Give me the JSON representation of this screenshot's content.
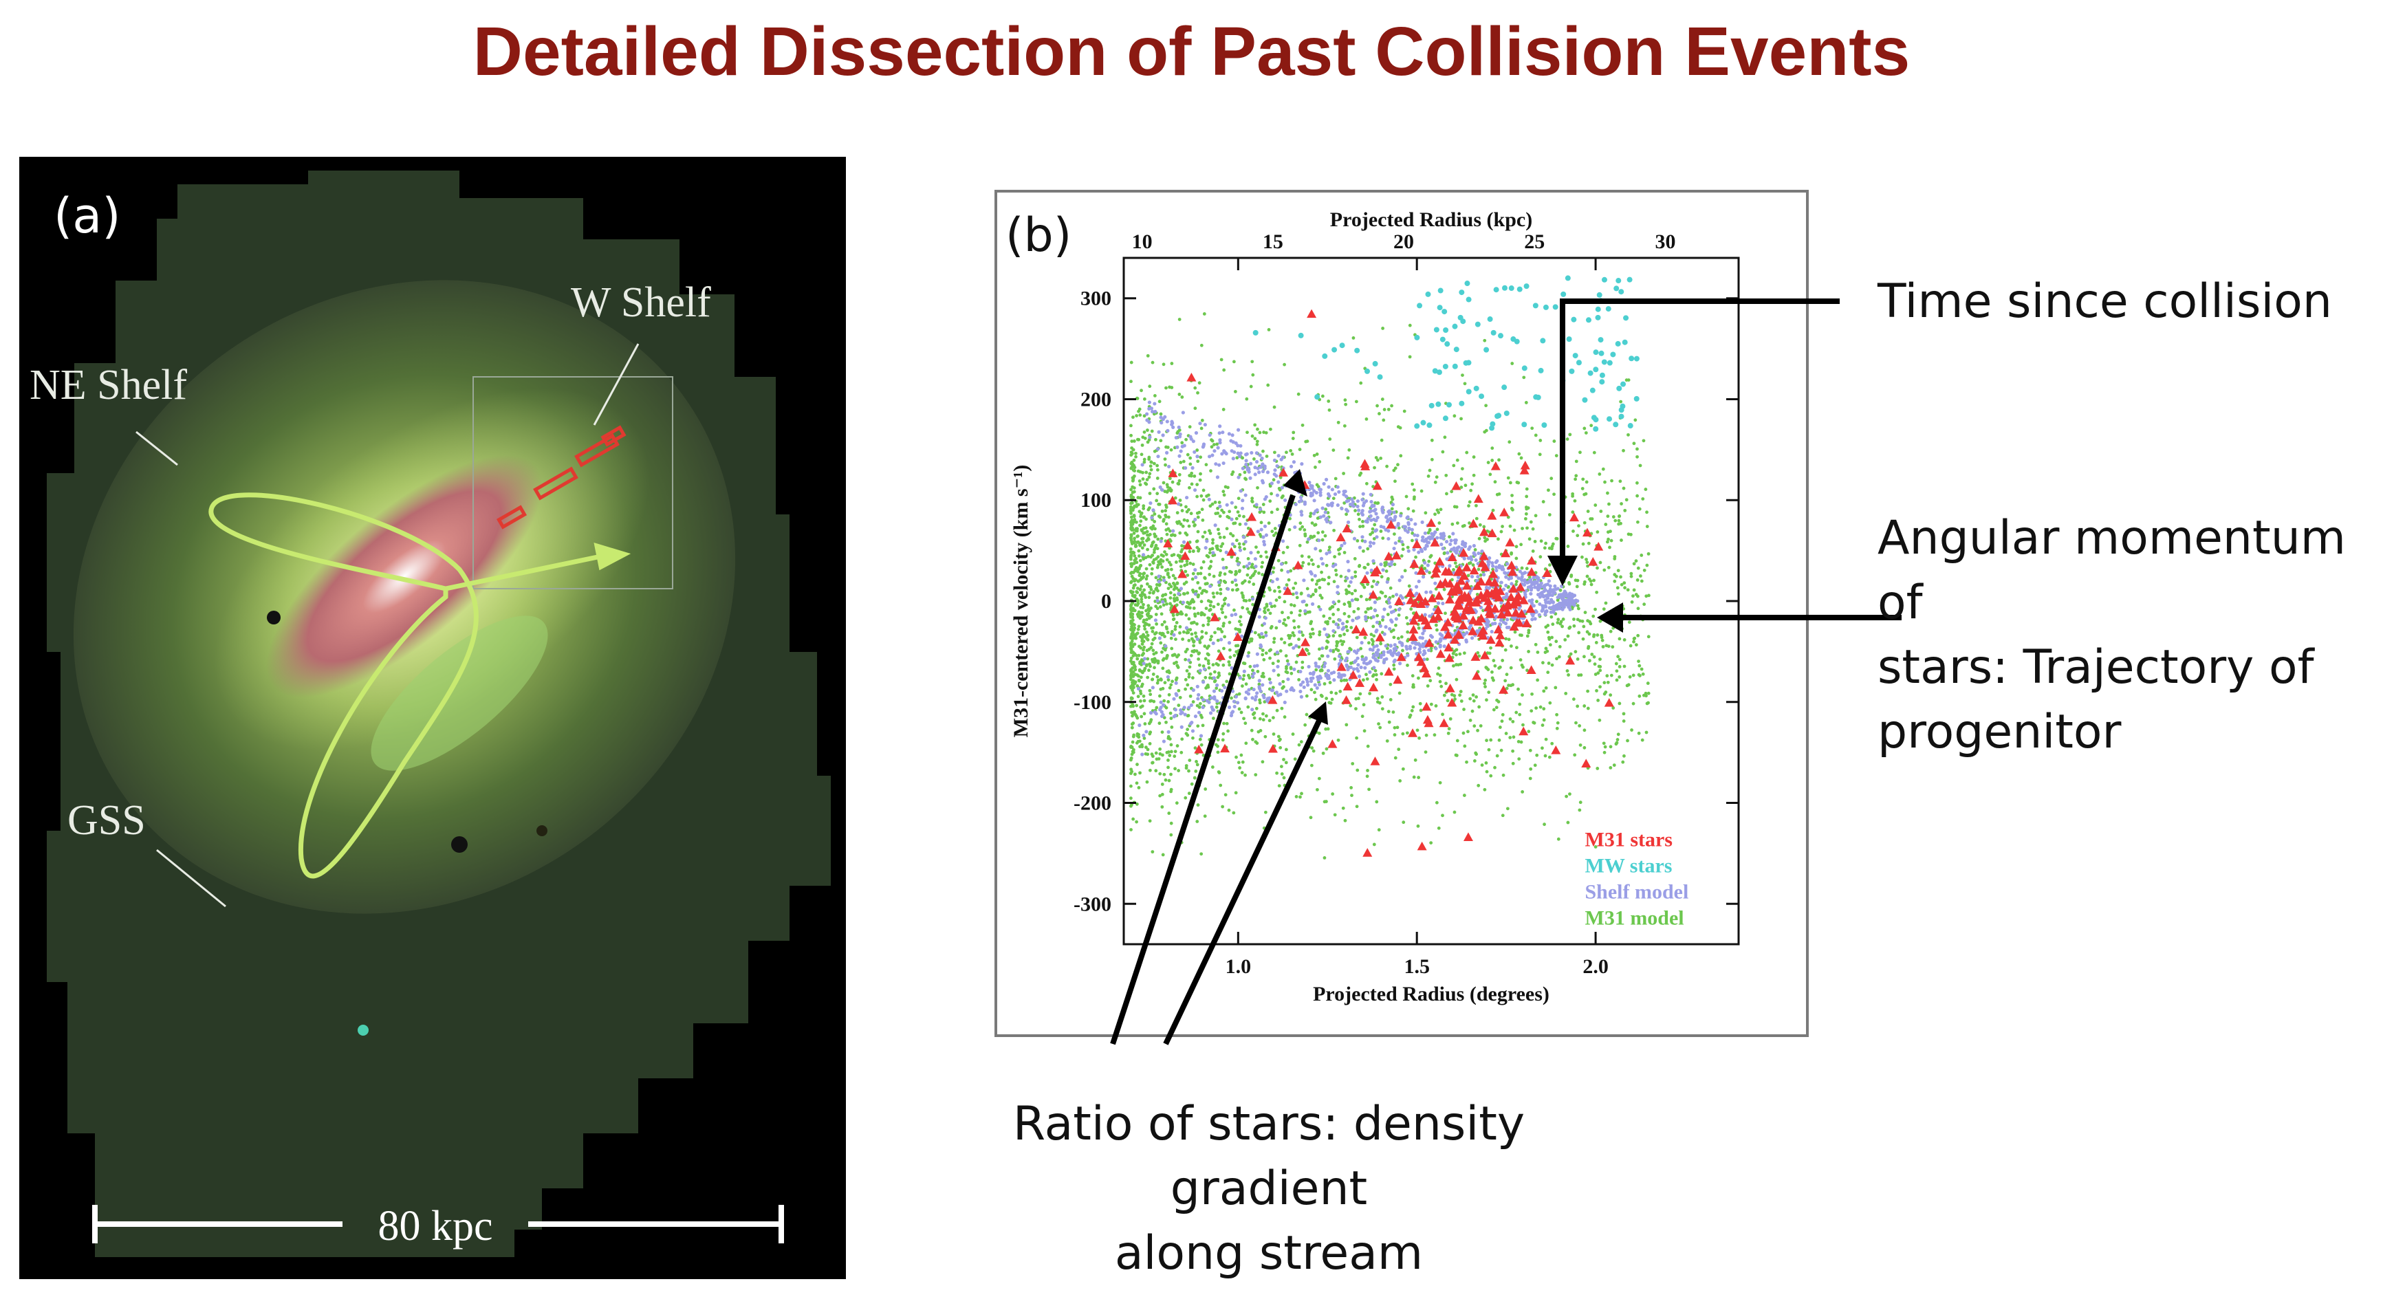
{
  "title": "Detailed Dissection of Past Collision Events",
  "panel_a": {
    "label": "(a)",
    "w_shelf_label": "W Shelf",
    "ne_shelf_label": "NE Shelf",
    "gss_label": "GSS",
    "scale_bar_label": "80 kpc"
  },
  "panel_b": {
    "label": "(b)"
  },
  "annotations": {
    "time_since_collision": "Time since collision",
    "angular_momentum": "Angular momentum of\nstars: Trajectory of\nprogenitor",
    "ratio_of_stars": "Ratio of stars: density gradient\nalong stream"
  },
  "chart_data": {
    "type": "scatter",
    "xlabel": "Projected Radius (degrees)",
    "x2label": "Projected Radius (kpc)",
    "ylabel": "M31-centered velocity (km s⁻¹)",
    "xlim": [
      0.68,
      2.4
    ],
    "ylim": [
      -340,
      340
    ],
    "x2lim": [
      9.3,
      32.8
    ],
    "xticks": [
      1.0,
      1.5,
      2.0
    ],
    "xtick_labels": [
      "1.0",
      "1.5",
      "2.0"
    ],
    "x2ticks": [
      10,
      15,
      20,
      25,
      30
    ],
    "x2tick_labels": [
      "10",
      "15",
      "20",
      "25",
      "30"
    ],
    "yticks": [
      300,
      200,
      100,
      0,
      -100,
      -200,
      -300
    ],
    "ytick_labels": [
      "300",
      "200",
      "100",
      "0",
      "-100",
      "-200",
      "-300"
    ],
    "legend_position": "bottom-right",
    "series": [
      {
        "name": "M31 model",
        "color": "#6cc74e",
        "marker": "dot",
        "count": 3200
      },
      {
        "name": "Shelf model",
        "color": "#9a9ee6",
        "marker": "dot",
        "count": 1400,
        "wedge_apex": [
          1.95,
          0
        ],
        "wedge_edges": [
          [
            0.72,
            190
          ],
          [
            0.72,
            -125
          ]
        ]
      },
      {
        "name": "MW stars",
        "color": "#4ccfd0",
        "marker": "dot",
        "count": 110
      },
      {
        "name": "M31 stars",
        "color": "#ef3535",
        "marker": "triangle",
        "count": 230
      }
    ],
    "legend": [
      "M31 stars",
      "MW stars",
      "Shelf model",
      "M31 model"
    ]
  }
}
